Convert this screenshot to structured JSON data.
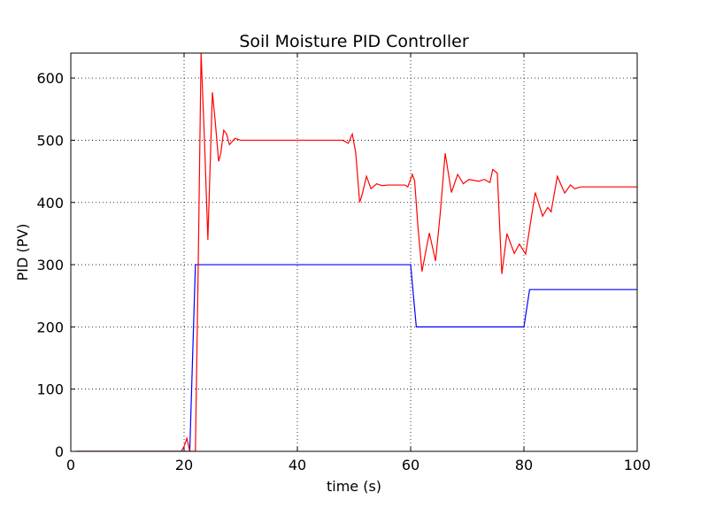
{
  "chart_data": {
    "type": "line",
    "title": "Soil Moisture PID Controller",
    "xlabel": "time (s)",
    "ylabel": "PID (PV)",
    "xlim": [
      0,
      100
    ],
    "xticks": [
      0,
      20,
      40,
      60,
      80,
      100
    ],
    "ylim": [
      0,
      640
    ],
    "yticks": [
      0,
      100,
      200,
      300,
      400,
      500,
      600
    ],
    "grid": true,
    "series": [
      {
        "color": "#0000ff",
        "x": [
          1,
          21,
          22,
          60,
          61,
          80,
          81,
          100
        ],
        "values": [
          0,
          0,
          300,
          300,
          200,
          200,
          260,
          260
        ]
      },
      {
        "color": "#ff0000",
        "x": [
          1,
          19.5,
          20,
          20.5,
          21,
          21.5,
          22,
          22.5,
          23,
          23.6,
          24.2,
          25,
          25.5,
          26.1,
          26.5,
          27,
          27.5,
          28,
          29,
          30,
          48,
          49,
          49.7,
          50.3,
          51,
          51.5,
          52.2,
          53,
          54,
          55,
          56,
          59,
          59.5,
          60.3,
          60.7,
          61.3,
          62,
          63.3,
          64.4,
          65.2,
          66.1,
          67.2,
          68.3,
          69.3,
          70.3,
          72,
          73,
          74,
          74.5,
          75.3,
          76.1,
          77,
          78.3,
          79.2,
          80.3,
          82,
          83.3,
          84.2,
          84.8,
          85.9,
          87.2,
          88.2,
          89,
          90,
          100
        ],
        "values": [
          0,
          0,
          8,
          21,
          0,
          0,
          0,
          300,
          640,
          500,
          340,
          577,
          530,
          466,
          480,
          516,
          510,
          493,
          503,
          500,
          500,
          495,
          510,
          480,
          400,
          415,
          442,
          422,
          430,
          427,
          428,
          428,
          425,
          445,
          435,
          360,
          289,
          351,
          306,
          380,
          479,
          416,
          445,
          430,
          437,
          434,
          437,
          432,
          453,
          447,
          285,
          350,
          318,
          333,
          317,
          416,
          378,
          392,
          385,
          442,
          415,
          428,
          422,
          425,
          425
        ]
      }
    ]
  }
}
